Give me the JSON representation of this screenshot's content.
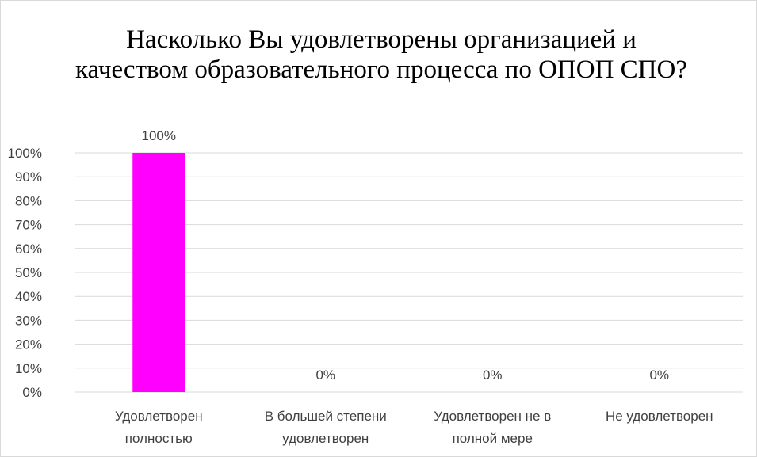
{
  "chart_data": {
    "type": "bar",
    "title": "Насколько Вы удовлетворены организацией и качеством образовательного процесса по ОПОП СПО?",
    "categories": [
      [
        "Удовлетворен",
        "полностью"
      ],
      [
        "В большей степени",
        "удовлетворен"
      ],
      [
        "Удовлетворен не в",
        "полной мере"
      ],
      [
        "Не удовлетворен"
      ]
    ],
    "values": [
      100,
      0,
      0,
      0
    ],
    "data_labels": [
      "100%",
      "0%",
      "0%",
      "0%"
    ],
    "yticks": [
      "0%",
      "10%",
      "20%",
      "30%",
      "40%",
      "50%",
      "60%",
      "70%",
      "80%",
      "90%",
      "100%"
    ],
    "ylim": [
      0,
      100
    ],
    "grid": true,
    "bar_color": "#ff00ff",
    "grid_color": "#d9d9d9",
    "xlabel": "",
    "ylabel": ""
  }
}
